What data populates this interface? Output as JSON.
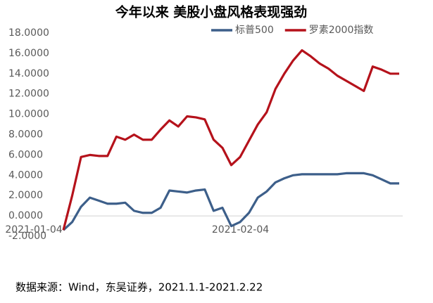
{
  "chart_data": {
    "type": "line",
    "title": "今年以来 美股小盘风格表现强劲",
    "source": "数据来源：Wind，东吴证券，2021.1.1-2021.2.22",
    "categories": [
      "2021-01-04",
      null,
      null,
      null,
      null,
      null,
      null,
      null,
      null,
      null,
      null,
      null,
      null,
      null,
      null,
      null,
      null,
      null,
      null,
      "2021-02-04",
      null,
      null,
      null,
      null,
      null,
      null,
      null,
      null,
      null,
      null,
      null,
      null,
      null,
      null,
      null,
      null,
      null,
      null,
      null
    ],
    "series": [
      {
        "name": "标普500",
        "color": "#3d5f8a",
        "values": [
          -1.4,
          -0.6,
          0.9,
          1.8,
          1.5,
          1.2,
          1.2,
          1.3,
          0.5,
          0.3,
          0.3,
          0.8,
          2.5,
          2.4,
          2.3,
          2.5,
          2.6,
          0.5,
          0.8,
          -1.0,
          -0.6,
          0.3,
          1.8,
          2.4,
          3.3,
          3.7,
          4.0,
          4.1,
          4.1,
          4.1,
          4.1,
          4.1,
          4.2,
          4.2,
          4.2,
          4.0,
          3.6,
          3.2,
          3.2
        ]
      },
      {
        "name": "罗素2000指数",
        "color": "#b5121b",
        "values": [
          -1.4,
          2.0,
          5.8,
          6.0,
          5.9,
          5.9,
          7.8,
          7.5,
          8.0,
          7.5,
          7.5,
          8.5,
          9.4,
          8.8,
          9.8,
          9.7,
          9.5,
          7.5,
          6.7,
          5.0,
          5.8,
          7.4,
          9.0,
          10.2,
          12.5,
          14.0,
          15.3,
          16.3,
          15.7,
          15.0,
          14.5,
          13.8,
          13.3,
          12.8,
          12.3,
          14.7,
          14.4,
          14.0,
          14.0
        ]
      }
    ],
    "ylim": [
      -2,
      18
    ],
    "yticks": [
      {
        "value": -2,
        "label": "-2.0000"
      },
      {
        "value": 0,
        "label": "0.0000"
      },
      {
        "value": 2,
        "label": "2.0000"
      },
      {
        "value": 4,
        "label": "4.0000"
      },
      {
        "value": 6,
        "label": "6.0000"
      },
      {
        "value": 8,
        "label": "8.0000"
      },
      {
        "value": 10,
        "label": "10.0000"
      },
      {
        "value": 12,
        "label": "12.0000"
      },
      {
        "value": 14,
        "label": "14.0000"
      },
      {
        "value": 16,
        "label": "16.0000"
      },
      {
        "value": 18,
        "label": "18.0000"
      }
    ],
    "grid": false,
    "legend": "top-right"
  }
}
